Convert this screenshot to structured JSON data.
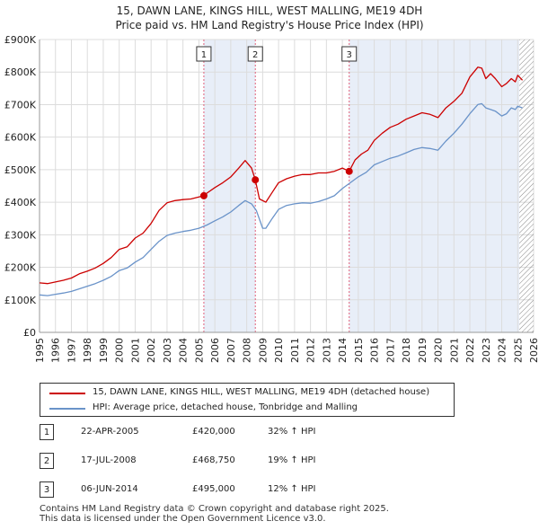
{
  "title_line1": "15, DAWN LANE, KINGS HILL, WEST MALLING, ME19 4DH",
  "title_line2": "Price paid vs. HM Land Registry's House Price Index (HPI)",
  "legend": {
    "property_label": "15, DAWN LANE, KINGS HILL, WEST MALLING, ME19 4DH (detached house)",
    "hpi_label": "HPI: Average price, detached house, Tonbridge and Malling"
  },
  "sales": [
    {
      "num": "1",
      "date": "22-APR-2005",
      "price": "£420,000",
      "hpi": "32% ↑ HPI"
    },
    {
      "num": "2",
      "date": "17-JUL-2008",
      "price": "£468,750",
      "hpi": "19% ↑ HPI"
    },
    {
      "num": "3",
      "date": "06-JUN-2014",
      "price": "£495,000",
      "hpi": "12% ↑ HPI"
    }
  ],
  "footer_line1": "Contains HM Land Registry data © Crown copyright and database right 2025.",
  "footer_line2": "This data is licensed under the Open Government Licence v3.0.",
  "colors": {
    "property": "#cc0000",
    "hpi": "#6a93c9",
    "shade": "#e8eef8",
    "grid": "#dcdcdc",
    "marker_line": "#e0607a",
    "hatch": "#888888"
  },
  "chart_data": {
    "type": "line",
    "title": "Price paid vs. HM Land Registry's House Price Index (HPI)",
    "xlabel": "",
    "ylabel": "",
    "xlim": [
      1995,
      2026
    ],
    "ylim": [
      0,
      900000
    ],
    "y_ticks": [
      0,
      100000,
      200000,
      300000,
      400000,
      500000,
      600000,
      700000,
      800000,
      900000
    ],
    "y_tick_labels": [
      "£0",
      "£100K",
      "£200K",
      "£300K",
      "£400K",
      "£500K",
      "£600K",
      "£700K",
      "£800K",
      "£900K"
    ],
    "x_ticks": [
      1995,
      1996,
      1997,
      1998,
      1999,
      2000,
      2001,
      2002,
      2003,
      2004,
      2005,
      2006,
      2007,
      2008,
      2009,
      2010,
      2011,
      2012,
      2013,
      2014,
      2015,
      2016,
      2017,
      2018,
      2019,
      2020,
      2021,
      2022,
      2023,
      2024,
      2025,
      2026
    ],
    "x_tick_labels": [
      "1995",
      "1996",
      "1997",
      "1998",
      "1999",
      "2000",
      "2001",
      "2002",
      "2003",
      "2004",
      "2005",
      "2006",
      "2007",
      "2008",
      "2009",
      "2010",
      "2011",
      "2012",
      "2013",
      "2014",
      "2015",
      "2016",
      "2017",
      "2018",
      "2019",
      "2020",
      "2021",
      "2022",
      "2023",
      "2024",
      "2025",
      "2026"
    ],
    "grid": true,
    "forecast_from": 2025.1,
    "series": [
      {
        "name": "15, DAWN LANE, KINGS HILL, WEST MALLING, ME19 4DH (detached house)",
        "x": [
          1995,
          1995.5,
          1996,
          1996.5,
          1997,
          1997.5,
          1998,
          1998.5,
          1999,
          1999.5,
          2000,
          2000.5,
          2001,
          2001.5,
          2002,
          2002.5,
          2003,
          2003.5,
          2004,
          2004.5,
          2005,
          2005.31,
          2005.5,
          2006,
          2006.5,
          2007,
          2007.5,
          2007.9,
          2008.3,
          2008.54,
          2008.8,
          2009.2,
          2009.6,
          2010,
          2010.5,
          2011,
          2011.5,
          2012,
          2012.5,
          2013,
          2013.5,
          2014,
          2014.43,
          2014.8,
          2015.2,
          2015.6,
          2016,
          2016.5,
          2017,
          2017.5,
          2018,
          2018.5,
          2019,
          2019.5,
          2020,
          2020.5,
          2021,
          2021.5,
          2022,
          2022.5,
          2022.75,
          2023,
          2023.3,
          2023.6,
          2024,
          2024.3,
          2024.6,
          2024.85,
          2025,
          2025.3
        ],
        "values": [
          152000,
          150000,
          155000,
          160000,
          167000,
          180000,
          188000,
          198000,
          212000,
          230000,
          255000,
          263000,
          290000,
          305000,
          335000,
          375000,
          398000,
          405000,
          408000,
          410000,
          416000,
          420000,
          428000,
          445000,
          460000,
          478000,
          505000,
          528000,
          505000,
          468750,
          410000,
          400000,
          430000,
          460000,
          472000,
          480000,
          485000,
          485000,
          490000,
          490000,
          495000,
          505000,
          495000,
          530000,
          548000,
          560000,
          590000,
          612000,
          630000,
          640000,
          655000,
          665000,
          675000,
          670000,
          660000,
          690000,
          710000,
          735000,
          785000,
          815000,
          812000,
          780000,
          795000,
          780000,
          755000,
          765000,
          780000,
          770000,
          790000,
          775000
        ]
      },
      {
        "name": "HPI: Average price, detached house, Tonbridge and Malling",
        "x": [
          1995,
          1995.5,
          1996,
          1996.5,
          1997,
          1997.5,
          1998,
          1998.5,
          1999,
          1999.5,
          2000,
          2000.5,
          2001,
          2001.5,
          2002,
          2002.5,
          2003,
          2003.5,
          2004,
          2004.5,
          2005,
          2005.5,
          2006,
          2006.5,
          2007,
          2007.5,
          2007.9,
          2008.3,
          2008.6,
          2009,
          2009.2,
          2009.6,
          2010,
          2010.5,
          2011,
          2011.5,
          2012,
          2012.5,
          2013,
          2013.5,
          2014,
          2014.5,
          2015,
          2015.5,
          2016,
          2016.5,
          2017,
          2017.5,
          2018,
          2018.5,
          2019,
          2019.5,
          2020,
          2020.5,
          2021,
          2021.5,
          2022,
          2022.5,
          2022.75,
          2023,
          2023.3,
          2023.6,
          2024,
          2024.3,
          2024.6,
          2024.85,
          2025,
          2025.3
        ],
        "values": [
          115000,
          113000,
          117000,
          121000,
          126000,
          134000,
          142000,
          150000,
          160000,
          172000,
          190000,
          198000,
          216000,
          230000,
          255000,
          280000,
          298000,
          305000,
          310000,
          314000,
          320000,
          330000,
          343000,
          355000,
          370000,
          390000,
          405000,
          395000,
          375000,
          320000,
          320000,
          350000,
          378000,
          390000,
          395000,
          398000,
          397000,
          402000,
          410000,
          420000,
          442000,
          460000,
          478000,
          492000,
          515000,
          525000,
          535000,
          542000,
          552000,
          562000,
          568000,
          565000,
          560000,
          588000,
          612000,
          640000,
          672000,
          700000,
          703000,
          690000,
          685000,
          680000,
          665000,
          672000,
          690000,
          685000,
          695000,
          690000
        ]
      }
    ],
    "sale_markers": [
      {
        "label": "1",
        "x": 2005.31,
        "value": 420000
      },
      {
        "label": "2",
        "x": 2008.54,
        "value": 468750
      },
      {
        "label": "3",
        "x": 2014.43,
        "value": 495000
      }
    ]
  }
}
